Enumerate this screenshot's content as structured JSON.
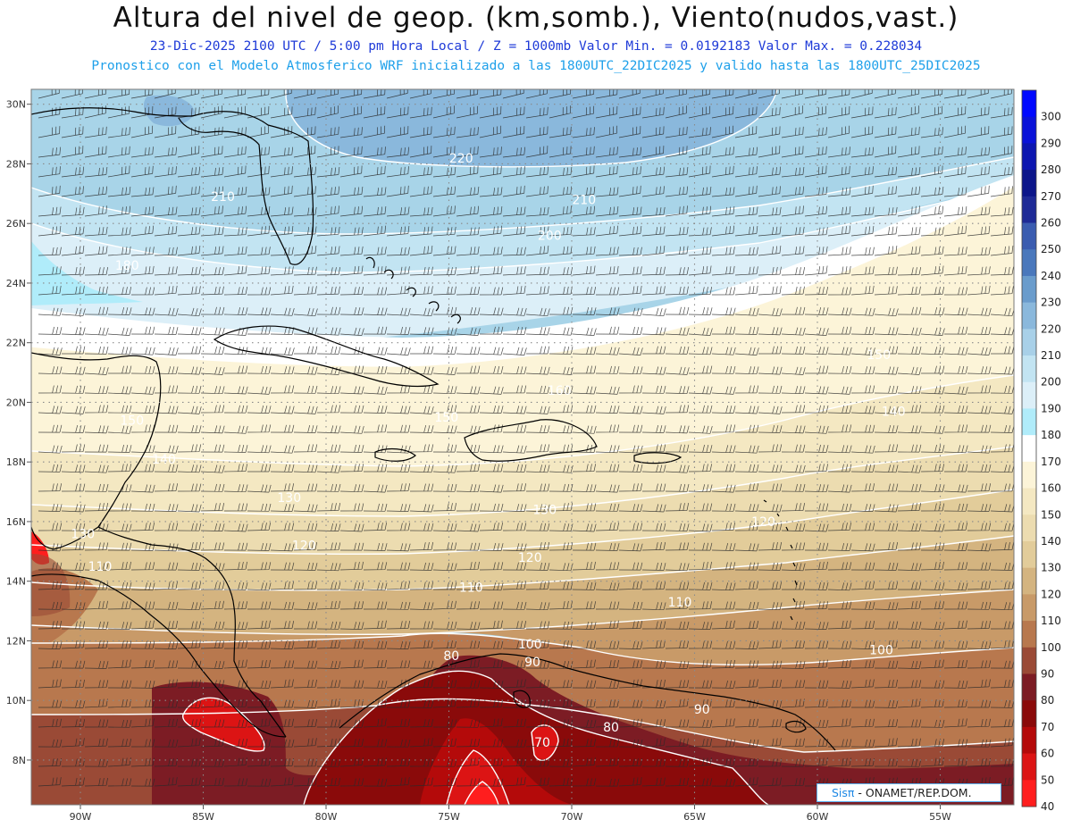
{
  "header": {
    "title": "Altura del nivel de geop. (km,somb.), Viento(nudos,vast.)",
    "line1": "23-Dic-2025  2100 UTC / 5:00 pm Hora Local / Z = 1000mb  Valor Min. = 0.0192183  Valor Max. = 0.228034",
    "line2": "Pronostico con el Modelo Atmosferico WRF inicializado a las 1800UTC_22DIC2025 y valido hasta las  1800UTC_25DIC2025"
  },
  "map": {
    "lon_range": [
      -92,
      -52
    ],
    "lat_range": [
      6.5,
      30.5
    ],
    "lat_ticks": [
      8,
      10,
      12,
      14,
      16,
      18,
      20,
      22,
      24,
      26,
      28,
      30
    ],
    "lon_ticks": [
      -90,
      -85,
      -80,
      -75,
      -70,
      -65,
      -60,
      -55
    ],
    "lat_tick_labels": [
      "8N",
      "10N",
      "12N",
      "14N",
      "16N",
      "18N",
      "20N",
      "22N",
      "24N",
      "26N",
      "28N",
      "30N"
    ],
    "lon_tick_labels": [
      "90W",
      "85W",
      "80W",
      "75W",
      "70W",
      "65W",
      "60W",
      "55W"
    ],
    "grid": true,
    "contour_labels": [
      {
        "text": "220",
        "lon": -74.5,
        "lat": 28.2
      },
      {
        "text": "210",
        "lon": -84.2,
        "lat": 26.9
      },
      {
        "text": "210",
        "lon": -69.5,
        "lat": 26.8
      },
      {
        "text": "200",
        "lon": -70.9,
        "lat": 25.6
      },
      {
        "text": "180",
        "lon": -88.1,
        "lat": 24.6
      },
      {
        "text": "150",
        "lon": -87.9,
        "lat": 19.4
      },
      {
        "text": "150",
        "lon": -75.1,
        "lat": 19.5
      },
      {
        "text": "150",
        "lon": -57.5,
        "lat": 21.6
      },
      {
        "text": "160",
        "lon": -70.5,
        "lat": 20.4
      },
      {
        "text": "140",
        "lon": -56.9,
        "lat": 19.7
      },
      {
        "text": "140",
        "lon": -86.6,
        "lat": 18.1
      },
      {
        "text": "130",
        "lon": -81.5,
        "lat": 16.8
      },
      {
        "text": "130",
        "lon": -71.1,
        "lat": 16.4
      },
      {
        "text": "130",
        "lon": -89.9,
        "lat": 15.6
      },
      {
        "text": "120",
        "lon": -80.9,
        "lat": 15.2
      },
      {
        "text": "120",
        "lon": -71.7,
        "lat": 14.8
      },
      {
        "text": "120",
        "lon": -62.2,
        "lat": 16.0
      },
      {
        "text": "110",
        "lon": -89.2,
        "lat": 14.5
      },
      {
        "text": "110",
        "lon": -74.1,
        "lat": 13.8
      },
      {
        "text": "110",
        "lon": -65.6,
        "lat": 13.3
      },
      {
        "text": "100",
        "lon": -71.7,
        "lat": 11.9
      },
      {
        "text": "100",
        "lon": -57.4,
        "lat": 11.7
      },
      {
        "text": "90",
        "lon": -71.6,
        "lat": 11.3
      },
      {
        "text": "90",
        "lon": -64.7,
        "lat": 9.7
      },
      {
        "text": "80",
        "lon": -74.9,
        "lat": 11.5
      },
      {
        "text": "80",
        "lon": -68.4,
        "lat": 9.1
      },
      {
        "text": "70",
        "lon": -71.2,
        "lat": 8.6
      }
    ]
  },
  "colorbar": {
    "levels": [
      "300",
      "290",
      "280",
      "270",
      "260",
      "250",
      "240",
      "230",
      "220",
      "210",
      "200",
      "190",
      "180",
      "170",
      "160",
      "150",
      "140",
      "130",
      "120",
      "110",
      "100",
      "90",
      "80",
      "70",
      "60",
      "50",
      "40"
    ],
    "colors": [
      "#0008ff",
      "#0a12d8",
      "#0c16b0",
      "#0c168a",
      "#1e2a96",
      "#3a5cb0",
      "#4a78bc",
      "#6a9ccc",
      "#8ab8dc",
      "#a8d0e8",
      "#c2e4f2",
      "#dceff8",
      "#b0ecfa",
      "#ffffff",
      "#fcf4d8",
      "#f4e8c2",
      "#ecdcb0",
      "#e2cc9a",
      "#d4b480",
      "#c89a68",
      "#b8784e",
      "#9a4a36",
      "#7c1c24",
      "#8a0a0a",
      "#b40a0a",
      "#dc1414",
      "#ff1e1e"
    ]
  },
  "credit": {
    "brand": "Sisπ",
    "text": " - ONAMET/REP.DOM."
  }
}
